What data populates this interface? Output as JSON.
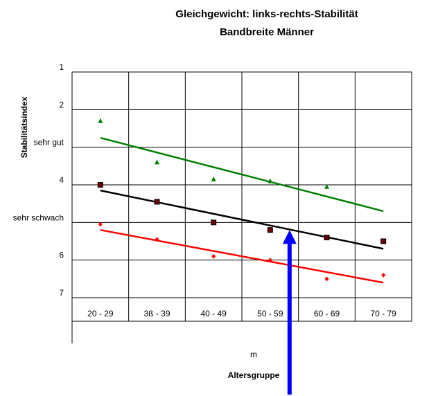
{
  "chart_data": {
    "type": "scatter",
    "title": "Gleichgewicht: links-rechts-Stabilität",
    "subtitle": "Bandbreite Männer",
    "xlabel": "Altersgruppe",
    "xlabel_extra": "m",
    "ylabel": "Stabilitätsindex",
    "categories": [
      "20 - 29",
      "3ß - 39",
      "40 - 49",
      "50 - 59",
      "60 - 69",
      "70 - 79"
    ],
    "ylim": [
      1,
      7
    ],
    "y_inverted": true,
    "y_ticks": [
      "1",
      "2",
      "sehr gut",
      "4",
      "sehr schwach",
      "6",
      "7"
    ],
    "grid": true,
    "series": [
      {
        "color": "#008000",
        "marker": "triangle",
        "values": [
          2.3,
          3.4,
          3.85,
          3.9,
          4.05,
          null
        ]
      },
      {
        "color": "#000000",
        "marker": "square",
        "values": [
          4.0,
          4.45,
          5.0,
          5.2,
          5.4,
          5.5
        ]
      },
      {
        "color": "#ff0000",
        "marker": "diamond",
        "values": [
          5.05,
          5.45,
          5.9,
          6.0,
          6.5,
          6.4
        ]
      }
    ],
    "trendlines": [
      {
        "color": "#008000",
        "start": 2.75,
        "end": 4.7
      },
      {
        "color": "#000000",
        "start": 4.15,
        "end": 5.7
      },
      {
        "color": "#ff0000",
        "start": 5.2,
        "end": 6.6
      }
    ],
    "annotation": {
      "type": "arrow",
      "color": "#0000ff",
      "at_category": "50 - 59",
      "points_to": 5.2
    }
  }
}
